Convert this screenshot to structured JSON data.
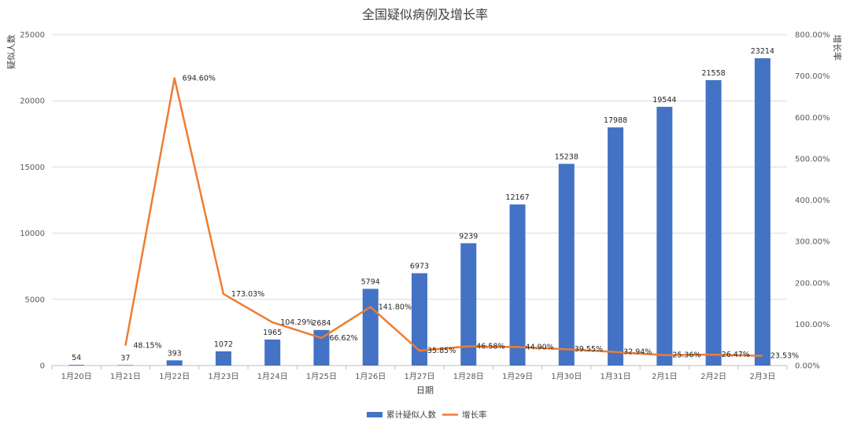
{
  "chart_data": {
    "type": "bar+line",
    "title": "全国疑似病例及增长率",
    "xlabel": "日期",
    "ylabel_left": "疑似人数",
    "ylabel_right": "增长率",
    "categories": [
      "1月20日",
      "1月21日",
      "1月22日",
      "1月23日",
      "1月24日",
      "1月25日",
      "1月26日",
      "1月27日",
      "1月28日",
      "1月29日",
      "1月30日",
      "1月31日",
      "2月1日",
      "2月2日",
      "2月3日"
    ],
    "bar_series": {
      "name": "累计疑似人数",
      "color": "#4472C4",
      "values": [
        54,
        37,
        393,
        1072,
        1965,
        2684,
        5794,
        6973,
        9239,
        12167,
        15238,
        17988,
        19544,
        21558,
        23214
      ]
    },
    "line_series": {
      "name": "增长率",
      "color": "#ED7D31",
      "values": [
        null,
        48.15,
        694.6,
        173.03,
        104.29,
        66.62,
        141.8,
        35.85,
        46.58,
        44.9,
        39.55,
        32.94,
        25.36,
        26.47,
        23.53
      ],
      "labels": [
        "",
        "48.15%",
        "694.60%",
        "173.03%",
        "104.29%",
        "66.62%",
        "141.80%",
        "35.85%",
        "46.58%",
        "44.90%",
        "39.55%",
        "32.94%",
        "25.36%",
        "26.47%",
        "23.53%"
      ]
    },
    "y_left": {
      "min": 0,
      "max": 25000,
      "ticks": [
        0,
        5000,
        10000,
        15000,
        20000,
        25000
      ]
    },
    "y_right": {
      "min": 0,
      "max": 800,
      "ticks": [
        "0.00%",
        "100.00%",
        "200.00%",
        "300.00%",
        "400.00%",
        "500.00%",
        "600.00%",
        "700.00%",
        "800.00%"
      ]
    },
    "grid": true,
    "legend_position": "bottom"
  }
}
